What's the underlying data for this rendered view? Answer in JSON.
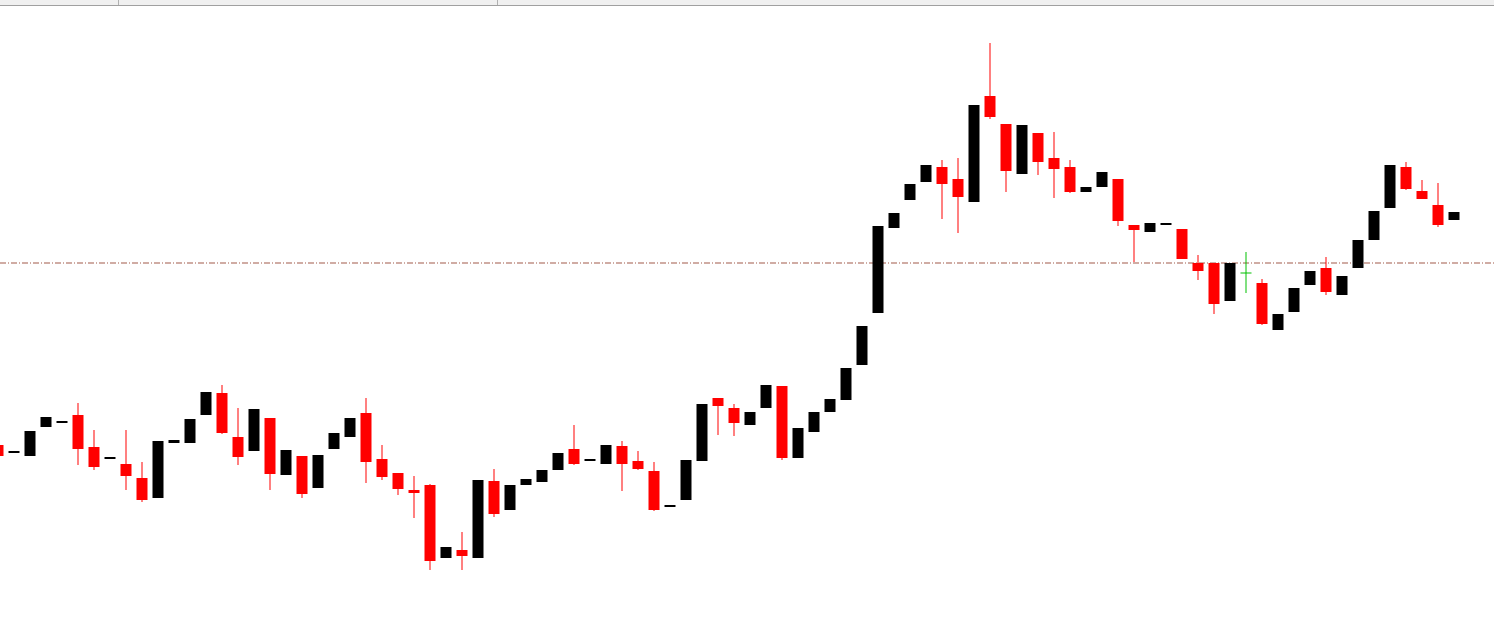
{
  "chart_data": {
    "type": "candlestick",
    "open": [
      191,
      183,
      180,
      209,
      213,
      221,
      189,
      177,
      172,
      158,
      138,
      193,
      193,
      221,
      243,
      199,
      185,
      218,
      161,
      180,
      148,
      187,
      199,
      223,
      177,
      163,
      146,
      151,
      78,
      86,
      78,
      155,
      126,
      151,
      154,
      166,
      187,
      175,
      172,
      190,
      175,
      165,
      129,
      136,
      175,
      238,
      228,
      211,
      228,
      250,
      178,
      204,
      224,
      236,
      271,
      323,
      408,
      436,
      454,
      469,
      457,
      434,
      540,
      512,
      462,
      503,
      478,
      469,
      444,
      449,
      457,
      411,
      404,
      411,
      407,
      373,
      373,
      335,
      363,
      353,
      306,
      324,
      351,
      368,
      341,
      368,
      396,
      428,
      469,
      445,
      431,
      416
    ],
    "high": [
      193,
      185,
      205,
      219,
      215,
      233,
      206,
      179,
      206,
      174,
      195,
      196,
      217,
      244,
      251,
      228,
      227,
      218,
      186,
      180,
      181,
      203,
      218,
      238,
      191,
      163,
      160,
      152,
      89,
      104,
      156,
      167,
      151,
      157,
      166,
      183,
      211,
      177,
      191,
      195,
      185,
      174,
      131,
      176,
      232,
      238,
      232,
      224,
      251,
      250,
      208,
      224,
      237,
      268,
      310,
      410,
      423,
      452,
      471,
      476,
      478,
      531,
      593,
      512,
      511,
      503,
      504,
      476,
      449,
      464,
      457,
      411,
      413,
      413,
      407,
      381,
      373,
      373,
      384,
      357,
      322,
      348,
      365,
      379,
      360,
      396,
      425,
      471,
      474,
      456,
      453,
      424
    ],
    "low": [
      178,
      183,
      180,
      209,
      213,
      171,
      166,
      177,
      146,
      134,
      138,
      193,
      193,
      221,
      202,
      171,
      185,
      146,
      161,
      138,
      148,
      187,
      199,
      153,
      156,
      141,
      118,
      66,
      78,
      66,
      78,
      119,
      126,
      151,
      154,
      166,
      171,
      175,
      172,
      145,
      166,
      125,
      129,
      136,
      175,
      201,
      200,
      211,
      228,
      176,
      178,
      204,
      224,
      236,
      271,
      323,
      408,
      436,
      454,
      417,
      403,
      434,
      517,
      444,
      462,
      461,
      438,
      443,
      444,
      449,
      410,
      374,
      404,
      411,
      377,
      356,
      322,
      335,
      343,
      311,
      306,
      324,
      351,
      341,
      341,
      368,
      396,
      428,
      446,
      437,
      409,
      416
    ],
    "close": [
      180,
      185,
      205,
      219,
      215,
      187,
      169,
      179,
      160,
      136,
      195,
      196,
      217,
      244,
      203,
      179,
      227,
      162,
      186,
      142,
      181,
      203,
      218,
      174,
      159,
      147,
      143,
      75,
      89,
      80,
      156,
      122,
      151,
      157,
      166,
      183,
      172,
      177,
      191,
      172,
      167,
      126,
      131,
      176,
      232,
      230,
      213,
      224,
      251,
      178,
      208,
      224,
      237,
      268,
      310,
      410,
      423,
      452,
      471,
      452,
      439,
      531,
      519,
      465,
      511,
      474,
      467,
      444,
      449,
      464,
      415,
      406,
      413,
      413,
      377,
      365,
      332,
      373,
      363,
      312,
      322,
      348,
      365,
      344,
      360,
      396,
      425,
      471,
      447,
      437,
      411,
      424
    ],
    "up_color": "#000000",
    "down_color": "#ff0000",
    "doji_color": "#00c000",
    "ylim": [
      0,
      636
    ],
    "hline": 373,
    "hline_color": "#a05a4a"
  }
}
